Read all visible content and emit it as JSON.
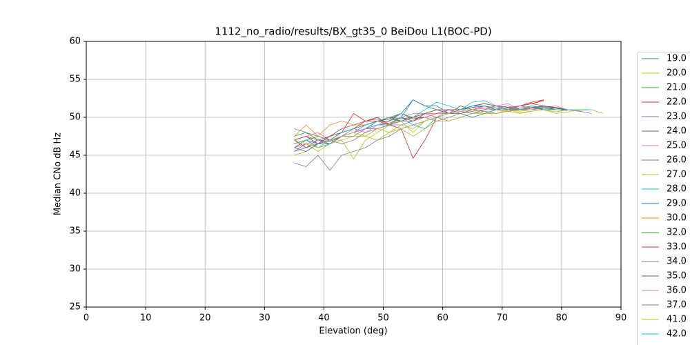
{
  "chart_data": {
    "type": "line",
    "title": "1112_no_radio/results/BX_gt35_0 BeiDou L1(BOC-PD)",
    "x_label": "Elevation (deg)",
    "y_label": "Median CNo dB Hz",
    "xlim": [
      0,
      90
    ],
    "xticks": [
      0,
      10,
      20,
      30,
      40,
      50,
      60,
      70,
      80,
      90
    ],
    "ylim": [
      25,
      60
    ],
    "yticks": [
      25,
      30,
      35,
      40,
      45,
      50,
      55,
      60
    ],
    "grid": true,
    "legend": "right",
    "x": [
      35,
      37,
      39,
      41,
      43,
      45,
      47,
      49,
      51,
      53,
      55,
      57,
      59,
      61,
      63,
      65,
      67,
      69,
      71,
      73,
      75,
      77,
      79,
      81,
      83,
      85,
      87
    ],
    "series": [
      {
        "name": "19.0",
        "color": "#1f77b4",
        "values": [
          46,
          46.5,
          47,
          46.8,
          47.5,
          48,
          48.5,
          49,
          49.2,
          50,
          52.3,
          51.5,
          51,
          50.5,
          51,
          51.3,
          51.5,
          51,
          50.8,
          51,
          51.2,
          51.4,
          51,
          50.9,
          null,
          null,
          null
        ]
      },
      {
        "name": "20.0",
        "color": "#bcbd22",
        "values": [
          45,
          45.5,
          46.5,
          47,
          47,
          44.5,
          47,
          48,
          49,
          49.5,
          48,
          49.5,
          50,
          50.5,
          51,
          51,
          50.8,
          50.5,
          51,
          50.6,
          50.8,
          51,
          50.7,
          51,
          50.9,
          51,
          50.5
        ]
      },
      {
        "name": "21.0",
        "color": "#2ca02c",
        "values": [
          47.5,
          48,
          47,
          46.5,
          47.5,
          48.5,
          49,
          49.5,
          50,
          49.8,
          50,
          50.5,
          51,
          50.5,
          51,
          51.5,
          51.5,
          51.2,
          51,
          51,
          51.5,
          51.3,
          51.2,
          51,
          null,
          null,
          null
        ]
      },
      {
        "name": "22.0",
        "color": "#d62728",
        "values": [
          47,
          46,
          46.5,
          47,
          48,
          50.5,
          49.5,
          50,
          49,
          48.5,
          44.6,
          47,
          50,
          50.5,
          51,
          51.5,
          51.8,
          51.5,
          51.3,
          51.5,
          52,
          52.3,
          null,
          null,
          null,
          null,
          null
        ]
      },
      {
        "name": "23.0",
        "color": "#9467bd",
        "values": [
          45.5,
          46.5,
          47,
          46.5,
          47.5,
          47.5,
          48.5,
          48.5,
          49,
          49,
          49.5,
          50.5,
          50,
          50.5,
          50.8,
          50.5,
          51,
          51.5,
          51,
          51,
          51.3,
          51.5,
          51,
          51,
          50.8,
          50.5,
          null
        ]
      },
      {
        "name": "24.0",
        "color": "#8c564b",
        "values": [
          46,
          47,
          46.5,
          47.5,
          48.5,
          49,
          49.5,
          49.8,
          49,
          50,
          49.5,
          50.5,
          51,
          50.5,
          51.5,
          51,
          51.5,
          51.2,
          51,
          51.5,
          51.8,
          51.5,
          51.2,
          51,
          null,
          null,
          null
        ]
      },
      {
        "name": "25.0",
        "color": "#e377c2",
        "values": [
          47,
          47.5,
          48,
          47,
          47.5,
          48.5,
          48,
          49,
          49.5,
          50,
          50.5,
          50.5,
          50,
          51,
          51,
          51.5,
          51.2,
          51.5,
          51.8,
          51,
          51.5,
          51.3,
          51.5,
          51,
          null,
          null,
          null
        ]
      },
      {
        "name": "26.0",
        "color": "#7f7f7f",
        "values": [
          44,
          43.5,
          45,
          43,
          45,
          45.5,
          46,
          47,
          47.5,
          48.5,
          49,
          49.5,
          50,
          49.5,
          50,
          50.5,
          50.8,
          50.5,
          50.8,
          51,
          51.2,
          51,
          51,
          51,
          null,
          null,
          null
        ]
      },
      {
        "name": "27.0",
        "color": "#bcbd22",
        "values": [
          46,
          46.5,
          45.5,
          46.5,
          47,
          47.5,
          47.5,
          47,
          48,
          48.5,
          47.5,
          48.5,
          49.5,
          49.5,
          50,
          50.5,
          50.5,
          50.5,
          50.8,
          50.5,
          50.8,
          51,
          50.5,
          50.7,
          51,
          51,
          null
        ]
      },
      {
        "name": "28.0",
        "color": "#17becf",
        "values": [
          46.5,
          47,
          46,
          46.5,
          47.5,
          48,
          48.5,
          49,
          49,
          50,
          49,
          48.5,
          50,
          50.5,
          51,
          52,
          52.2,
          51.5,
          51,
          51.2,
          51.5,
          51,
          51,
          51,
          null,
          null,
          null
        ]
      },
      {
        "name": "29.0",
        "color": "#1f77b4",
        "values": [
          46,
          45.5,
          46.5,
          46.5,
          47.5,
          48,
          48.5,
          49.5,
          49.5,
          50.5,
          52.3,
          51.5,
          51.5,
          50.5,
          50.5,
          50,
          50.5,
          51,
          50.8,
          51,
          51,
          51.2,
          51,
          null,
          null,
          null,
          null
        ]
      },
      {
        "name": "30.0",
        "color": "#ff7f0e",
        "values": [
          47.5,
          49,
          47.5,
          49,
          49.5,
          49,
          49,
          49.5,
          49.2,
          49.5,
          50,
          50.5,
          50.5,
          51,
          50.5,
          51,
          51.2,
          51,
          50.8,
          51,
          51.2,
          51,
          51,
          null,
          null,
          null,
          null
        ]
      },
      {
        "name": "32.0",
        "color": "#2ca02c",
        "values": [
          46.5,
          47,
          47.5,
          47,
          48,
          48.5,
          49,
          49.5,
          49.8,
          49.5,
          50,
          50,
          50.5,
          50.5,
          51,
          51.5,
          51.5,
          51,
          51.2,
          51.2,
          51.5,
          51,
          51,
          null,
          null,
          null,
          null
        ]
      },
      {
        "name": "33.0",
        "color": "#d62728",
        "values": [
          47,
          47.5,
          46.5,
          47.5,
          48,
          48.5,
          49.5,
          49.5,
          49.8,
          50.5,
          49.8,
          50,
          50.5,
          51,
          51,
          51.5,
          51.5,
          51.2,
          51,
          51.5,
          51.8,
          52.2,
          null,
          null,
          null,
          null,
          null
        ]
      },
      {
        "name": "34.0",
        "color": "#9467bd",
        "values": [
          45.5,
          46,
          47,
          46.5,
          47.5,
          48,
          49,
          49.5,
          49,
          49.5,
          50,
          50,
          50.5,
          51,
          50.5,
          51,
          51.5,
          51.2,
          51.5,
          51,
          51.3,
          51,
          null,
          null,
          null,
          null,
          null
        ]
      },
      {
        "name": "35.0",
        "color": "#8c564b",
        "values": [
          47,
          47.5,
          47,
          47.5,
          48,
          48.5,
          49,
          49.5,
          50,
          49.5,
          50,
          50.5,
          51,
          51,
          51,
          51.5,
          51.8,
          51.5,
          51.3,
          51.5,
          51.2,
          51.5,
          51.3,
          51,
          null,
          null,
          null
        ]
      },
      {
        "name": "36.0",
        "color": "#e377c2",
        "values": [
          46,
          46.5,
          47,
          47,
          47.5,
          48,
          48.5,
          48.5,
          49,
          49.5,
          49.5,
          50,
          50.5,
          50.5,
          51,
          51,
          51.2,
          51,
          51.2,
          51.5,
          51.2,
          51,
          null,
          null,
          null,
          null,
          null
        ]
      },
      {
        "name": "37.0",
        "color": "#7f7f7f",
        "values": [
          48.5,
          48,
          47.5,
          47,
          46.5,
          47,
          48,
          48.5,
          49,
          49.5,
          49.5,
          50,
          49.5,
          50,
          50.5,
          50.8,
          51,
          51,
          51.2,
          51,
          51.3,
          51,
          null,
          null,
          null,
          null,
          null
        ]
      },
      {
        "name": "41.0",
        "color": "#bcbd22",
        "values": [
          47,
          46.5,
          46,
          47,
          47.5,
          48,
          47.5,
          48.5,
          48,
          49,
          48.5,
          49.5,
          50,
          50.5,
          50.8,
          51,
          50.5,
          50.5,
          51,
          50.8,
          51,
          null,
          null,
          null,
          null,
          null,
          null
        ]
      },
      {
        "name": "42.0",
        "color": "#17becf",
        "values": [
          46.5,
          47,
          46.5,
          47,
          48,
          48.5,
          49,
          49.5,
          50,
          50.5,
          50,
          51,
          52,
          51.5,
          51,
          51.5,
          51.5,
          51.2,
          51,
          51.2,
          51.5,
          51.2,
          51,
          51,
          51,
          51,
          null
        ]
      }
    ]
  }
}
